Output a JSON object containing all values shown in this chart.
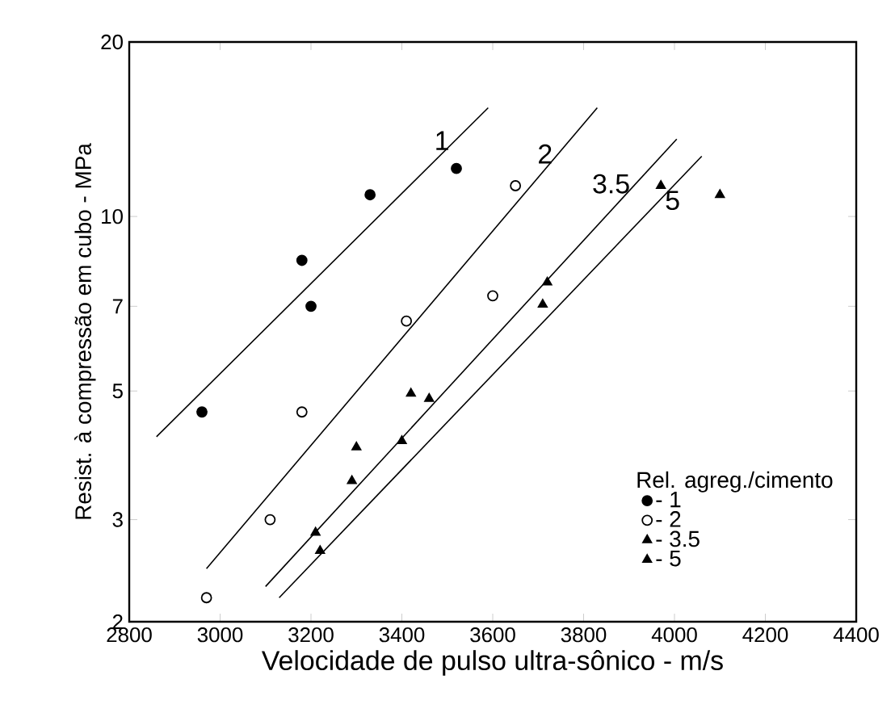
{
  "chart_data": {
    "type": "scatter",
    "xlabel": "Velocidade de pulso ultra-sônico - m/s",
    "ylabel": "Resist. à compressão em cubo - MPa",
    "legend_title": "Rel. agreg./cimento",
    "legend": "bottom right",
    "log": "y",
    "grid": false,
    "xlim": [
      2800,
      4400
    ],
    "xticks": [
      2800,
      3000,
      3200,
      3400,
      3600,
      3800,
      4000,
      4200,
      4400
    ],
    "ylim": [
      2,
      20
    ],
    "yticks": [
      2,
      3,
      5,
      7,
      10,
      20
    ],
    "series": [
      {
        "name": "- 1",
        "marker": "circle",
        "color": "#000000",
        "x": [
          2960,
          3180,
          3200,
          3330,
          3520
        ],
        "values": [
          4.6,
          8.4,
          7.0,
          10.9,
          12.1
        ]
      },
      {
        "name": "- 2",
        "marker": "circle-open",
        "color": "#000000",
        "x": [
          2970,
          3110,
          3180,
          3410,
          3600,
          3650
        ],
        "values": [
          2.2,
          3.0,
          4.6,
          6.6,
          7.3,
          11.3
        ]
      },
      {
        "name": "- 3.5",
        "marker": "triangle",
        "color": "#000000",
        "x": [
          3210,
          3300,
          3420,
          3720,
          3970
        ],
        "values": [
          2.85,
          4.0,
          4.95,
          7.7,
          11.3
        ]
      },
      {
        "name": "- 5",
        "marker": "triangle",
        "color": "#000000",
        "x": [
          3220,
          3290,
          3400,
          3460,
          3710,
          4100
        ],
        "values": [
          2.65,
          3.5,
          4.1,
          4.85,
          7.05,
          10.9
        ]
      },
      {
        "name": "1",
        "type": "line",
        "color": "#000000",
        "x": [
          2860,
          3590
        ],
        "values": [
          4.17,
          15.4
        ]
      },
      {
        "name": "2",
        "type": "line",
        "color": "#000000",
        "x": [
          2970,
          3830
        ],
        "values": [
          2.47,
          15.4
        ]
      },
      {
        "name": "3.5",
        "type": "line",
        "color": "#000000",
        "x": [
          3100,
          4005
        ],
        "values": [
          2.3,
          13.6
        ]
      },
      {
        "name": "5",
        "type": "line",
        "color": "#000000",
        "x": [
          3130,
          4060
        ],
        "values": [
          2.2,
          12.7
        ]
      }
    ]
  }
}
